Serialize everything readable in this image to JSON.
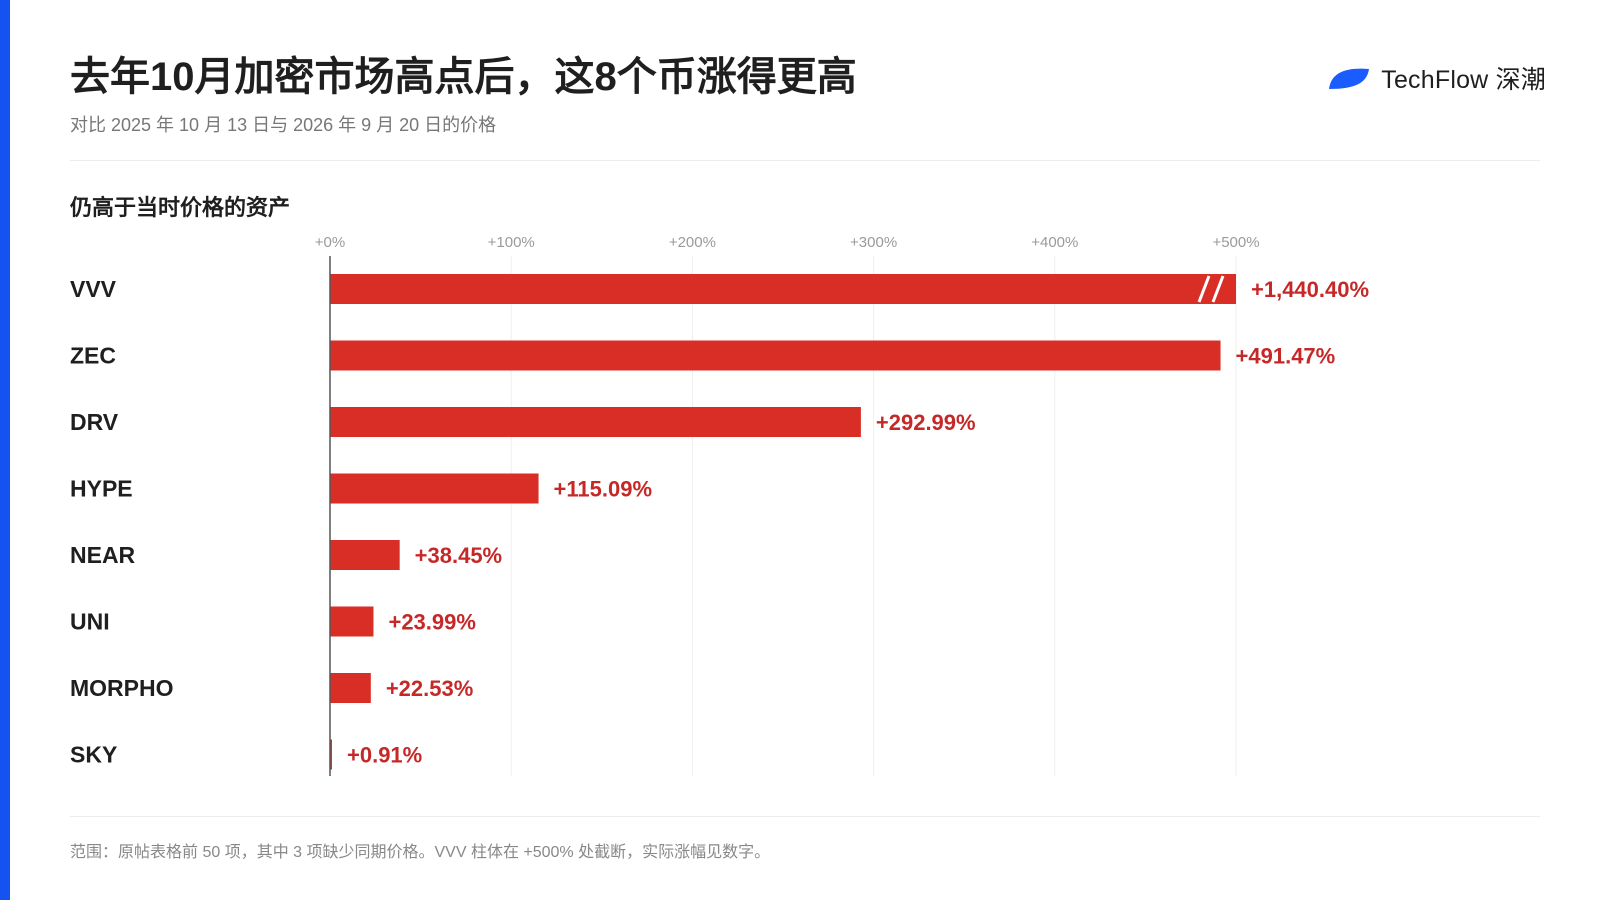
{
  "header": {
    "title": "去年10月加密市场高点后，这8个币涨得更高",
    "subtitle": "对比 2025 年 10 月 13 日与 2026 年 9 月 20 日的价格",
    "logo_text": "TechFlow 深潮"
  },
  "section_title": "仍高于当时价格的资产",
  "footnote": "范围：原帖表格前 50 项，其中 3 项缺少同期价格。VVV 柱体在 +500% 处截断，实际涨幅见数字。",
  "colors": {
    "bar": "#d92e25",
    "label": "#c62828",
    "accent": "#1652f0",
    "logo": "#1a5cff"
  },
  "chart_data": {
    "type": "bar",
    "orientation": "horizontal",
    "categories": [
      "VVV",
      "ZEC",
      "DRV",
      "HYPE",
      "NEAR",
      "UNI",
      "MORPHO",
      "SKY"
    ],
    "values": [
      1440.4,
      491.47,
      292.99,
      115.09,
      38.45,
      23.99,
      22.53,
      0.91
    ],
    "value_labels": [
      "+1,440.40%",
      "+491.47%",
      "+292.99%",
      "+115.09%",
      "+38.45%",
      "+23.99%",
      "+22.53%",
      "+0.91%"
    ],
    "xlim": [
      0,
      500
    ],
    "x_ticks": [
      0,
      100,
      200,
      300,
      400,
      500
    ],
    "x_tick_labels": [
      "+0%",
      "+100%",
      "+200%",
      "+300%",
      "+400%",
      "+500%"
    ],
    "truncated_at": 500,
    "grid": true,
    "title": "仍高于当时价格的资产"
  }
}
